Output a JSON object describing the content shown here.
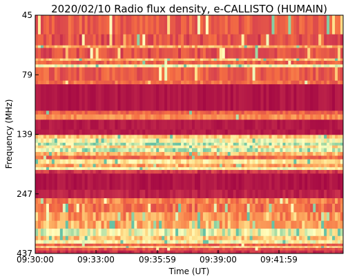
{
  "chart_data": {
    "type": "heatmap",
    "title": "2020/02/10  Radio flux density, e-CALLISTO (HUMAIN)",
    "xlabel": "Time (UT)",
    "ylabel": "Frequency (MHz)",
    "x_ticks": [
      "09:30:00",
      "09:33:00",
      "09:35:59",
      "09:39:00",
      "09:41:59"
    ],
    "y_ticks": [
      "45",
      "79",
      "139",
      "247",
      "437"
    ],
    "ylim": [
      45,
      437
    ],
    "colormap": "Spectral_r",
    "colors": {
      "background_band": "#9e0142",
      "mid": "#d53e4f",
      "warm": "#f46d43",
      "light": "#fee08b",
      "cool": "#abdda4",
      "cyan": "#66c2a5"
    },
    "bands": [
      {
        "f0": 45,
        "f1": 54,
        "level": 0.28,
        "var": 0.12,
        "spikes": 0.06
      },
      {
        "f0": 54,
        "f1": 60,
        "level": 0.25,
        "var": 0.14,
        "spikes": 0.05
      },
      {
        "f0": 60,
        "f1": 61.5,
        "level": 0.55,
        "var": 0.15,
        "spikes": 0.05
      },
      {
        "f0": 61.5,
        "f1": 68,
        "level": 0.24,
        "var": 0.12,
        "spikes": 0.05
      },
      {
        "f0": 68,
        "f1": 69.5,
        "level": 0.6,
        "var": 0.15,
        "spikes": 0.05
      },
      {
        "f0": 69.5,
        "f1": 72,
        "level": 0.3,
        "var": 0.12,
        "spikes": 0.04
      },
      {
        "f0": 72,
        "f1": 74,
        "level": 0.82,
        "var": 0.08,
        "spikes": 0.02
      },
      {
        "f0": 74,
        "f1": 84,
        "level": 0.28,
        "var": 0.12,
        "spikes": 0.04
      },
      {
        "f0": 84,
        "f1": 87,
        "level": 0.35,
        "var": 0.12,
        "spikes": 0.03
      },
      {
        "f0": 87,
        "f1": 112,
        "level": 0.05,
        "var": 0.03,
        "spikes": 0.0
      },
      {
        "f0": 112,
        "f1": 116,
        "level": 0.3,
        "var": 0.1,
        "spikes": 0.02
      },
      {
        "f0": 116,
        "f1": 122,
        "level": 0.45,
        "var": 0.1,
        "spikes": 0.02
      },
      {
        "f0": 122,
        "f1": 134,
        "level": 0.06,
        "var": 0.03,
        "spikes": 0.0
      },
      {
        "f0": 134,
        "f1": 141,
        "level": 0.06,
        "var": 0.03,
        "spikes": 0.0
      },
      {
        "f0": 141,
        "f1": 146,
        "level": 0.62,
        "var": 0.15,
        "spikes": 0.05
      },
      {
        "f0": 146,
        "f1": 152,
        "level": 0.78,
        "var": 0.12,
        "spikes": 0.04
      },
      {
        "f0": 152,
        "f1": 156,
        "level": 0.9,
        "var": 0.1,
        "spikes": 0.03
      },
      {
        "f0": 156,
        "f1": 160,
        "level": 0.7,
        "var": 0.15,
        "spikes": 0.04
      },
      {
        "f0": 160,
        "f1": 166,
        "level": 0.88,
        "var": 0.1,
        "spikes": 0.03
      },
      {
        "f0": 166,
        "f1": 172,
        "level": 0.58,
        "var": 0.15,
        "spikes": 0.05
      },
      {
        "f0": 172,
        "f1": 178,
        "level": 0.32,
        "var": 0.12,
        "spikes": 0.04
      },
      {
        "f0": 178,
        "f1": 186,
        "level": 0.72,
        "var": 0.12,
        "spikes": 0.04
      },
      {
        "f0": 186,
        "f1": 192,
        "level": 0.5,
        "var": 0.15,
        "spikes": 0.05
      },
      {
        "f0": 192,
        "f1": 197,
        "level": 0.78,
        "var": 0.1,
        "spikes": 0.03
      },
      {
        "f0": 197,
        "f1": 204,
        "level": 0.15,
        "var": 0.08,
        "spikes": 0.0
      },
      {
        "f0": 204,
        "f1": 238,
        "level": 0.05,
        "var": 0.03,
        "spikes": 0.0
      },
      {
        "f0": 238,
        "f1": 258,
        "level": 0.08,
        "var": 0.04,
        "spikes": 0.0
      },
      {
        "f0": 258,
        "f1": 272,
        "level": 0.4,
        "var": 0.15,
        "spikes": 0.06
      },
      {
        "f0": 272,
        "f1": 295,
        "level": 0.35,
        "var": 0.15,
        "spikes": 0.08
      },
      {
        "f0": 295,
        "f1": 320,
        "level": 0.48,
        "var": 0.18,
        "spikes": 0.1
      },
      {
        "f0": 320,
        "f1": 345,
        "level": 0.55,
        "var": 0.18,
        "spikes": 0.12
      },
      {
        "f0": 345,
        "f1": 370,
        "level": 0.8,
        "var": 0.14,
        "spikes": 0.06
      },
      {
        "f0": 370,
        "f1": 385,
        "level": 0.62,
        "var": 0.16,
        "spikes": 0.08
      },
      {
        "f0": 385,
        "f1": 398,
        "level": 0.76,
        "var": 0.12,
        "spikes": 0.05
      },
      {
        "f0": 398,
        "f1": 408,
        "level": 0.3,
        "var": 0.1,
        "spikes": 0.03
      },
      {
        "f0": 408,
        "f1": 414,
        "level": 0.72,
        "var": 0.1,
        "spikes": 0.02
      },
      {
        "f0": 414,
        "f1": 425,
        "level": 0.25,
        "var": 0.1,
        "spikes": 0.02
      },
      {
        "f0": 425,
        "f1": 437,
        "level": 0.12,
        "var": 0.06,
        "spikes": 0.0
      }
    ]
  }
}
